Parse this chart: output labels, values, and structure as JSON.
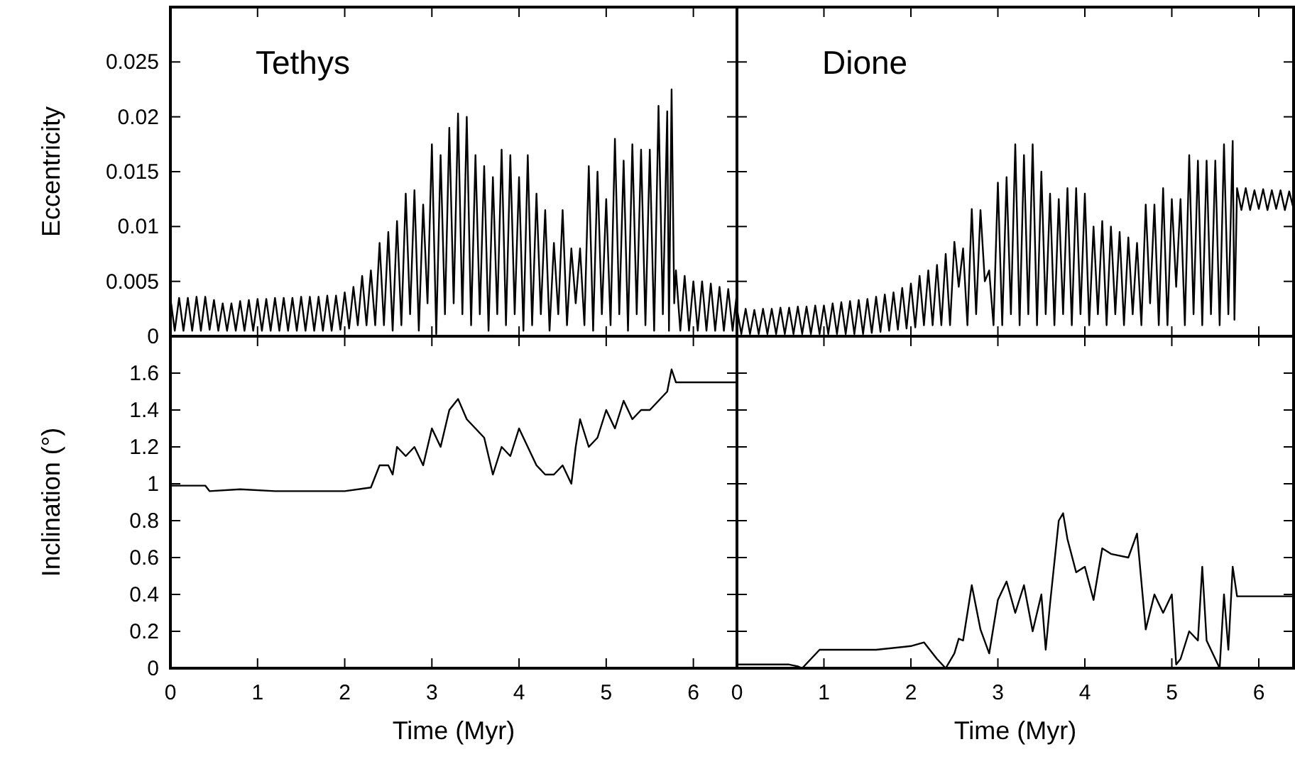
{
  "chart_data": [
    {
      "type": "line",
      "annotations": [
        "Tethys"
      ],
      "ylabel": "Eccentricity",
      "xlim": [
        0,
        6.5
      ],
      "xticks": [
        0,
        1,
        2,
        3,
        4,
        5,
        6
      ],
      "ylim": [
        0,
        0.03
      ],
      "yticks": [
        0,
        0.005,
        0.01,
        0.015,
        0.02,
        0.025
      ],
      "tick_labels": "y",
      "series": [
        {
          "color": "#000000",
          "x": [
            0,
            0.05,
            0.1,
            0.15,
            0.2,
            0.25,
            0.3,
            0.35,
            0.4,
            0.45,
            0.5,
            0.55,
            0.6,
            0.65,
            0.7,
            0.75,
            0.8,
            0.85,
            0.9,
            0.95,
            1,
            1.05,
            1.1,
            1.15,
            1.2,
            1.25,
            1.3,
            1.35,
            1.4,
            1.45,
            1.5,
            1.55,
            1.6,
            1.65,
            1.7,
            1.75,
            1.8,
            1.85,
            1.9,
            1.95,
            2,
            2.05,
            2.1,
            2.15,
            2.2,
            2.25,
            2.3,
            2.35,
            2.4,
            2.45,
            2.5,
            2.55,
            2.6,
            2.65,
            2.7,
            2.75,
            2.8,
            2.85,
            2.9,
            2.95,
            3,
            3.05,
            3.1,
            3.15,
            3.2,
            3.25,
            3.3,
            3.35,
            3.4,
            3.45,
            3.5,
            3.55,
            3.6,
            3.65,
            3.7,
            3.75,
            3.8,
            3.85,
            3.9,
            3.95,
            4,
            4.05,
            4.1,
            4.15,
            4.2,
            4.25,
            4.3,
            4.35,
            4.4,
            4.45,
            4.5,
            4.55,
            4.6,
            4.65,
            4.7,
            4.75,
            4.8,
            4.85,
            4.9,
            4.95,
            5,
            5.05,
            5.1,
            5.15,
            5.2,
            5.25,
            5.3,
            5.35,
            5.4,
            5.45,
            5.5,
            5.55,
            5.6,
            5.65,
            5.7,
            5.72,
            5.75,
            5.78,
            5.8,
            5.85,
            5.9,
            5.95,
            6,
            6.05,
            6.1,
            6.15,
            6.2,
            6.25,
            6.3,
            6.35,
            6.4,
            6.45,
            6.5
          ],
          "values": [
            0.0035,
            0.0005,
            0.0035,
            0.0005,
            0.0035,
            0.0005,
            0.0036,
            0.0005,
            0.0036,
            0.0006,
            0.0033,
            0.0005,
            0.003,
            0.0005,
            0.003,
            0.0005,
            0.0032,
            0.0005,
            0.0033,
            0.0005,
            0.0034,
            0.0005,
            0.0034,
            0.0005,
            0.0035,
            0.0005,
            0.0035,
            0.0005,
            0.0035,
            0.0005,
            0.0036,
            0.0005,
            0.0036,
            0.0005,
            0.0036,
            0.0005,
            0.0037,
            0.0005,
            0.0037,
            0.0006,
            0.004,
            0.0007,
            0.0045,
            0.001,
            0.0055,
            0.001,
            0.006,
            0.001,
            0.0085,
            0.001,
            0.0095,
            0.0005,
            0.0105,
            0.001,
            0.013,
            0.002,
            0.0133,
            0.0005,
            0.012,
            0.003,
            0.0175,
            0.0002,
            0.0165,
            0.002,
            0.019,
            0.003,
            0.0203,
            0.002,
            0.02,
            0.001,
            0.0165,
            0.002,
            0.0155,
            0.0005,
            0.0145,
            0.002,
            0.017,
            0.001,
            0.0165,
            0.002,
            0.0145,
            0.0005,
            0.0165,
            0.001,
            0.013,
            0.002,
            0.0115,
            0.0005,
            0.0085,
            0.002,
            0.0115,
            0.001,
            0.008,
            0.003,
            0.008,
            0.001,
            0.0155,
            0.0005,
            0.015,
            0.002,
            0.0125,
            0.001,
            0.018,
            0.002,
            0.016,
            0.0005,
            0.0175,
            0.002,
            0.017,
            0.001,
            0.017,
            0.0005,
            0.021,
            0.002,
            0.0205,
            0.0005,
            0.0225,
            0.003,
            0.006,
            0.0005,
            0.0055,
            0.0005,
            0.005,
            0.0005,
            0.005,
            0.0005,
            0.0048,
            0.0005,
            0.0045,
            0.0005,
            0.0043,
            0.0005,
            0.004
          ]
        }
      ]
    },
    {
      "type": "line",
      "annotations": [
        "Dione"
      ],
      "xlim": [
        0,
        6.4
      ],
      "xticks": [
        0,
        1,
        2,
        3,
        4,
        5,
        6
      ],
      "ylim": [
        0,
        0.03
      ],
      "yticks": [
        0,
        0.005,
        0.01,
        0.015,
        0.02,
        0.025
      ],
      "tick_labels": false,
      "series": [
        {
          "color": "#000000",
          "x": [
            0,
            0.05,
            0.1,
            0.15,
            0.2,
            0.25,
            0.3,
            0.35,
            0.4,
            0.45,
            0.5,
            0.55,
            0.6,
            0.65,
            0.7,
            0.75,
            0.8,
            0.85,
            0.9,
            0.95,
            1,
            1.05,
            1.1,
            1.15,
            1.2,
            1.25,
            1.3,
            1.35,
            1.4,
            1.45,
            1.5,
            1.55,
            1.6,
            1.65,
            1.7,
            1.75,
            1.8,
            1.85,
            1.9,
            1.95,
            2,
            2.05,
            2.1,
            2.15,
            2.2,
            2.25,
            2.3,
            2.35,
            2.4,
            2.45,
            2.5,
            2.55,
            2.6,
            2.65,
            2.7,
            2.75,
            2.8,
            2.85,
            2.9,
            2.95,
            3,
            3.05,
            3.1,
            3.15,
            3.2,
            3.25,
            3.3,
            3.35,
            3.4,
            3.45,
            3.5,
            3.55,
            3.6,
            3.65,
            3.7,
            3.75,
            3.8,
            3.85,
            3.9,
            3.95,
            4,
            4.05,
            4.1,
            4.15,
            4.2,
            4.25,
            4.3,
            4.35,
            4.4,
            4.45,
            4.5,
            4.55,
            4.6,
            4.65,
            4.7,
            4.75,
            4.8,
            4.85,
            4.9,
            4.95,
            5,
            5.05,
            5.1,
            5.15,
            5.2,
            5.25,
            5.3,
            5.35,
            5.4,
            5.45,
            5.5,
            5.55,
            5.6,
            5.65,
            5.7,
            5.72,
            5.75,
            5.8,
            5.85,
            5.9,
            5.95,
            6,
            6.05,
            6.1,
            6.15,
            6.2,
            6.25,
            6.3,
            6.35,
            6.4
          ],
          "values": [
            0.0025,
            0.0002,
            0.0025,
            0.0002,
            0.0024,
            0.0002,
            0.0025,
            0.0002,
            0.0025,
            0.0002,
            0.0026,
            0.0002,
            0.0026,
            0.0002,
            0.0027,
            0.0002,
            0.0027,
            0.0002,
            0.0028,
            0.0002,
            0.0028,
            0.0002,
            0.003,
            0.0002,
            0.0031,
            0.0002,
            0.0032,
            0.0002,
            0.0033,
            0.0002,
            0.0034,
            0.0003,
            0.0036,
            0.0004,
            0.0038,
            0.0005,
            0.004,
            0.0006,
            0.0044,
            0.0007,
            0.0048,
            0.0008,
            0.0055,
            0.001,
            0.006,
            0.001,
            0.0065,
            0.001,
            0.0075,
            0.001,
            0.0086,
            0.0045,
            0.008,
            0.001,
            0.0116,
            0.002,
            0.0115,
            0.005,
            0.006,
            0.001,
            0.014,
            0.001,
            0.0145,
            0.002,
            0.0175,
            0.001,
            0.0165,
            0.002,
            0.0175,
            0.001,
            0.015,
            0.002,
            0.013,
            0.001,
            0.0125,
            0.002,
            0.0135,
            0.001,
            0.0135,
            0.002,
            0.013,
            0.001,
            0.01,
            0.002,
            0.0105,
            0.001,
            0.01,
            0.002,
            0.0095,
            0.001,
            0.009,
            0.002,
            0.0085,
            0.001,
            0.012,
            0.003,
            0.012,
            0.001,
            0.0135,
            0.001,
            0.0125,
            0.0045,
            0.0125,
            0.001,
            0.0165,
            0.002,
            0.016,
            0.001,
            0.016,
            0.002,
            0.016,
            0.001,
            0.0175,
            0.002,
            0.0178,
            0.0015,
            0.0135,
            0.0115,
            0.0135,
            0.0115,
            0.0133,
            0.0116,
            0.0134,
            0.0115,
            0.0133,
            0.0116,
            0.0133,
            0.0115,
            0.0132,
            0.0116
          ]
        }
      ]
    },
    {
      "type": "line",
      "xlabel": "Time (Myr)",
      "ylabel": "Inclination (°)",
      "xlim": [
        0,
        6.5
      ],
      "xticks": [
        0,
        1,
        2,
        3,
        4,
        5,
        6
      ],
      "ylim": [
        0,
        1.8
      ],
      "yticks": [
        0,
        0.2,
        0.4,
        0.6,
        0.8,
        1,
        1.2,
        1.4,
        1.6
      ],
      "series": [
        {
          "color": "#000000",
          "x": [
            0,
            0.2,
            0.4,
            0.45,
            0.8,
            1.2,
            1.6,
            2,
            2.3,
            2.4,
            2.5,
            2.55,
            2.6,
            2.7,
            2.8,
            2.9,
            3,
            3.1,
            3.2,
            3.3,
            3.4,
            3.5,
            3.6,
            3.7,
            3.8,
            3.9,
            4,
            4.1,
            4.2,
            4.3,
            4.4,
            4.5,
            4.6,
            4.65,
            4.7,
            4.8,
            4.9,
            5,
            5.1,
            5.2,
            5.3,
            5.4,
            5.5,
            5.6,
            5.7,
            5.75,
            5.8,
            6.2,
            6.5
          ],
          "values": [
            0.99,
            0.99,
            0.99,
            0.96,
            0.97,
            0.96,
            0.96,
            0.96,
            0.98,
            1.1,
            1.1,
            1.05,
            1.2,
            1.15,
            1.2,
            1.1,
            1.3,
            1.2,
            1.4,
            1.46,
            1.35,
            1.3,
            1.25,
            1.05,
            1.2,
            1.15,
            1.3,
            1.2,
            1.1,
            1.05,
            1.05,
            1.1,
            1.0,
            1.2,
            1.35,
            1.2,
            1.25,
            1.4,
            1.3,
            1.45,
            1.35,
            1.4,
            1.4,
            1.45,
            1.5,
            1.62,
            1.55,
            1.55,
            1.55
          ]
        }
      ]
    },
    {
      "type": "line",
      "xlabel": "Time (Myr)",
      "xlim": [
        0,
        6.4
      ],
      "xticks": [
        0,
        1,
        2,
        3,
        4,
        5,
        6
      ],
      "ylim": [
        0,
        1.8
      ],
      "yticks": [
        0,
        0.2,
        0.4,
        0.6,
        0.8,
        1,
        1.2,
        1.4,
        1.6
      ],
      "tick_labels": "x",
      "series": [
        {
          "color": "#000000",
          "x": [
            0,
            0.3,
            0.6,
            0.7,
            0.75,
            0.95,
            1.2,
            1.6,
            2,
            2.15,
            2.3,
            2.4,
            2.5,
            2.55,
            2.6,
            2.7,
            2.8,
            2.9,
            3,
            3.1,
            3.2,
            3.3,
            3.4,
            3.5,
            3.55,
            3.6,
            3.7,
            3.75,
            3.8,
            3.9,
            4,
            4.1,
            4.2,
            4.3,
            4.5,
            4.6,
            4.7,
            4.8,
            4.9,
            5,
            5.05,
            5.1,
            5.2,
            5.3,
            5.35,
            5.4,
            5.5,
            5.55,
            5.6,
            5.65,
            5.7,
            5.75,
            6,
            6.4
          ],
          "values": [
            0.02,
            0.02,
            0.02,
            0.01,
            0.0,
            0.1,
            0.1,
            0.1,
            0.12,
            0.14,
            0.05,
            0.0,
            0.08,
            0.16,
            0.15,
            0.45,
            0.21,
            0.08,
            0.37,
            0.47,
            0.3,
            0.45,
            0.2,
            0.4,
            0.1,
            0.35,
            0.8,
            0.84,
            0.7,
            0.52,
            0.55,
            0.37,
            0.65,
            0.62,
            0.6,
            0.73,
            0.21,
            0.4,
            0.3,
            0.4,
            0.02,
            0.05,
            0.2,
            0.15,
            0.55,
            0.15,
            0.05,
            0.0,
            0.4,
            0.1,
            0.55,
            0.39,
            0.39,
            0.39
          ]
        }
      ]
    }
  ]
}
